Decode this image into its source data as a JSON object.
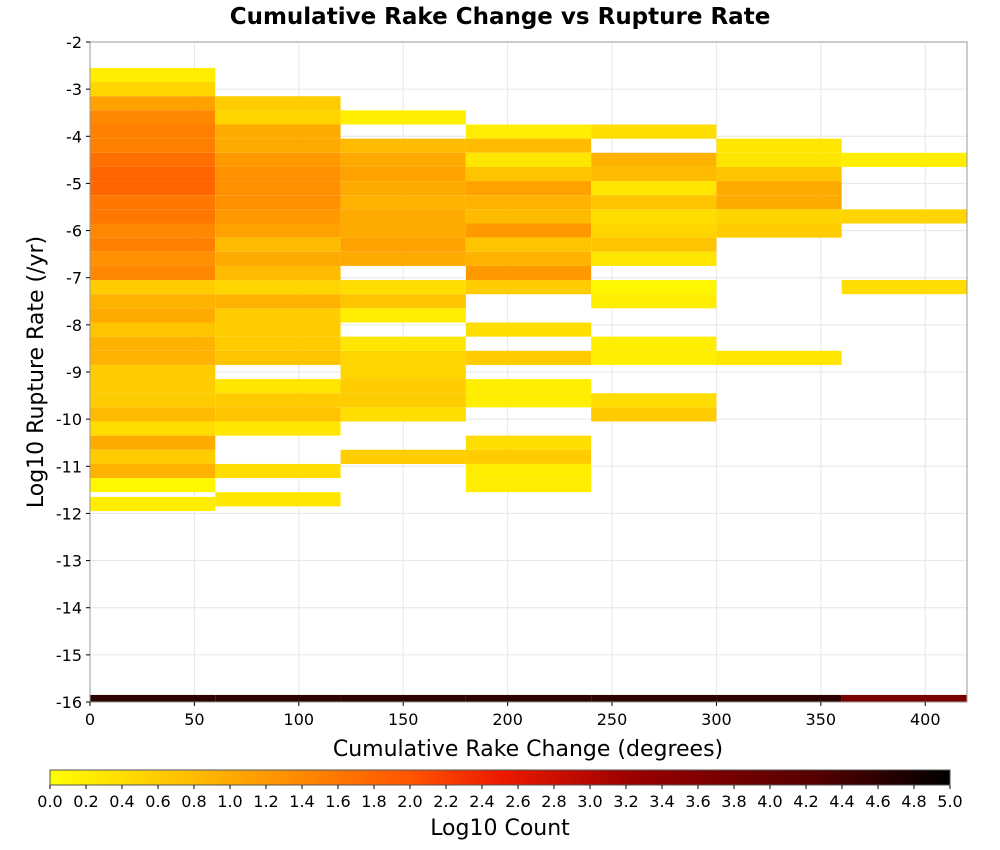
{
  "chart_data": {
    "type": "heatmap",
    "title": "Cumulative Rake Change vs Rupture Rate",
    "xlabel": "Cumulative Rake Change (degrees)",
    "ylabel": "Log10 Rupture Rate (/yr)",
    "colorbar_label": "Log10 Count",
    "xlim": [
      0,
      420
    ],
    "ylim": [
      -16,
      -2
    ],
    "x_ticks": [
      0,
      50,
      100,
      150,
      200,
      250,
      300,
      350,
      400
    ],
    "y_ticks": [
      -2,
      -3,
      -4,
      -5,
      -6,
      -7,
      -8,
      -9,
      -10,
      -11,
      -12,
      -13,
      -14,
      -15,
      -16
    ],
    "color_range": [
      0,
      5
    ],
    "colorbar_ticks": [
      "0.0",
      "0.2",
      "0.4",
      "0.6",
      "0.8",
      "1.0",
      "1.2",
      "1.4",
      "1.6",
      "1.8",
      "2.0",
      "2.2",
      "2.4",
      "2.6",
      "2.8",
      "3.0",
      "3.2",
      "3.4",
      "3.6",
      "3.8",
      "4.0",
      "4.2",
      "4.4",
      "4.6",
      "4.8",
      "5.0"
    ],
    "grid": true,
    "x_bin_width": 60,
    "y_bin_height": 0.3,
    "columns": [
      {
        "x0": 0,
        "cells": [
          [
            -2.7,
            0.2
          ],
          [
            -3.0,
            0.5
          ],
          [
            -3.3,
            1.1
          ],
          [
            -3.6,
            1.4
          ],
          [
            -3.9,
            1.5
          ],
          [
            -4.2,
            1.5
          ],
          [
            -4.5,
            1.7
          ],
          [
            -4.8,
            1.8
          ],
          [
            -5.1,
            1.8
          ],
          [
            -5.4,
            1.6
          ],
          [
            -5.7,
            1.6
          ],
          [
            -6.0,
            1.4
          ],
          [
            -6.3,
            1.5
          ],
          [
            -6.6,
            1.3
          ],
          [
            -6.9,
            1.4
          ],
          [
            -7.2,
            0.6
          ],
          [
            -7.5,
            0.9
          ],
          [
            -7.8,
            1.0
          ],
          [
            -8.1,
            0.7
          ],
          [
            -8.4,
            0.9
          ],
          [
            -8.7,
            0.9
          ],
          [
            -9.0,
            0.6
          ],
          [
            -9.3,
            0.6
          ],
          [
            -9.6,
            0.6
          ],
          [
            -9.9,
            0.8
          ],
          [
            -10.2,
            0.4
          ],
          [
            -10.5,
            1.0
          ],
          [
            -10.8,
            0.6
          ],
          [
            -11.1,
            0.9
          ],
          [
            -11.4,
            0.1
          ],
          [
            -11.8,
            0.2
          ]
        ]
      },
      {
        "x0": 60,
        "cells": [
          [
            -3.3,
            0.6
          ],
          [
            -3.6,
            0.5
          ],
          [
            -3.9,
            1.0
          ],
          [
            -4.2,
            1.0
          ],
          [
            -4.5,
            1.2
          ],
          [
            -4.8,
            1.3
          ],
          [
            -5.1,
            1.3
          ],
          [
            -5.4,
            1.3
          ],
          [
            -5.7,
            1.2
          ],
          [
            -6.0,
            1.1
          ],
          [
            -6.3,
            0.8
          ],
          [
            -6.6,
            1.0
          ],
          [
            -6.9,
            0.8
          ],
          [
            -7.2,
            0.5
          ],
          [
            -7.5,
            0.9
          ],
          [
            -7.8,
            0.6
          ],
          [
            -8.1,
            0.6
          ],
          [
            -8.4,
            0.6
          ],
          [
            -8.7,
            0.7
          ],
          [
            -9.3,
            0.3
          ],
          [
            -9.6,
            0.6
          ],
          [
            -9.9,
            0.7
          ],
          [
            -10.2,
            0.3
          ],
          [
            -11.1,
            0.4
          ],
          [
            -11.7,
            0.3
          ]
        ]
      },
      {
        "x0": 120,
        "cells": [
          [
            -3.6,
            0.2
          ],
          [
            -4.2,
            0.8
          ],
          [
            -4.5,
            1.0
          ],
          [
            -4.8,
            1.1
          ],
          [
            -5.1,
            1.0
          ],
          [
            -5.4,
            0.9
          ],
          [
            -5.7,
            1.0
          ],
          [
            -6.0,
            1.0
          ],
          [
            -6.3,
            1.1
          ],
          [
            -6.6,
            1.0
          ],
          [
            -7.2,
            0.4
          ],
          [
            -7.5,
            0.7
          ],
          [
            -7.8,
            0.2
          ],
          [
            -8.4,
            0.3
          ],
          [
            -8.7,
            0.5
          ],
          [
            -9.0,
            0.5
          ],
          [
            -9.3,
            0.6
          ],
          [
            -9.6,
            0.6
          ],
          [
            -9.9,
            0.4
          ],
          [
            -10.8,
            0.6
          ]
        ]
      },
      {
        "x0": 180,
        "cells": [
          [
            -3.9,
            0.2
          ],
          [
            -4.2,
            0.8
          ],
          [
            -4.5,
            0.3
          ],
          [
            -4.8,
            0.7
          ],
          [
            -5.1,
            1.1
          ],
          [
            -5.4,
            0.9
          ],
          [
            -5.7,
            0.8
          ],
          [
            -6.0,
            1.2
          ],
          [
            -6.3,
            0.7
          ],
          [
            -6.6,
            0.9
          ],
          [
            -6.9,
            1.2
          ],
          [
            -7.2,
            0.6
          ],
          [
            -8.1,
            0.4
          ],
          [
            -8.7,
            0.6
          ],
          [
            -9.3,
            0.2
          ],
          [
            -9.6,
            0.2
          ],
          [
            -10.5,
            0.4
          ],
          [
            -10.8,
            0.6
          ],
          [
            -11.1,
            0.2
          ],
          [
            -11.4,
            0.2
          ]
        ]
      },
      {
        "x0": 240,
        "cells": [
          [
            -3.9,
            0.4
          ],
          [
            -4.5,
            0.9
          ],
          [
            -4.8,
            0.8
          ],
          [
            -5.1,
            0.3
          ],
          [
            -5.4,
            0.7
          ],
          [
            -5.7,
            0.4
          ],
          [
            -6.0,
            0.5
          ],
          [
            -6.3,
            0.7
          ],
          [
            -6.6,
            0.3
          ],
          [
            -7.2,
            0.1
          ],
          [
            -7.5,
            0.2
          ],
          [
            -8.4,
            0.2
          ],
          [
            -8.7,
            0.2
          ],
          [
            -9.6,
            0.4
          ],
          [
            -9.9,
            0.6
          ]
        ]
      },
      {
        "x0": 300,
        "cells": [
          [
            -4.2,
            0.3
          ],
          [
            -4.5,
            0.3
          ],
          [
            -4.8,
            0.7
          ],
          [
            -5.1,
            1.0
          ],
          [
            -5.4,
            1.0
          ],
          [
            -5.7,
            0.5
          ],
          [
            -6.0,
            0.6
          ],
          [
            -8.7,
            0.3
          ]
        ]
      },
      {
        "x0": 360,
        "cells": [
          [
            -4.5,
            0.2
          ],
          [
            -5.7,
            0.5
          ],
          [
            -7.2,
            0.4
          ]
        ]
      }
    ],
    "bottom_row": {
      "y": -16,
      "values": [
        4.6,
        4.6,
        4.6,
        4.6,
        4.6,
        4.6,
        3.7
      ]
    }
  }
}
